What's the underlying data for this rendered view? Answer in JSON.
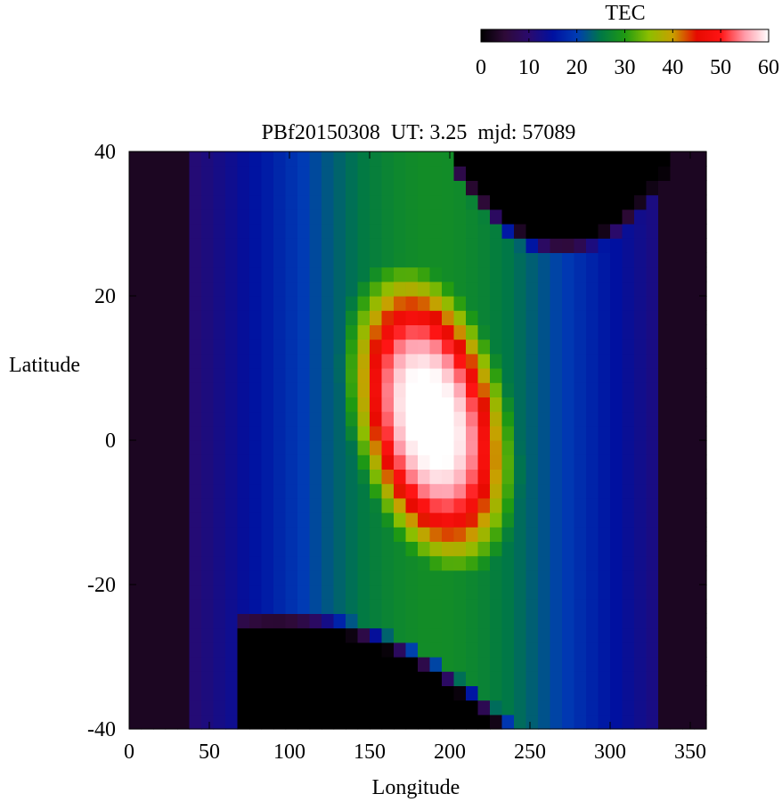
{
  "chart_data": {
    "type": "heatmap",
    "title": "PBf20150308  UT: 3.25  mjd: 57089",
    "xlabel": "Longitude",
    "ylabel": "Latitude",
    "xlim": [
      0,
      360
    ],
    "ylim": [
      -40,
      40
    ],
    "xticks": [
      0,
      50,
      100,
      150,
      200,
      250,
      300,
      350
    ],
    "yticks": [
      -40,
      -20,
      0,
      20,
      40
    ],
    "grid": false,
    "colorbar": {
      "label": "TEC",
      "range": [
        0,
        60
      ],
      "ticks": [
        0,
        10,
        20,
        30,
        40,
        50,
        60
      ],
      "placement": "top-right",
      "colormap": [
        {
          "value": 0,
          "color": "#000000"
        },
        {
          "value": 5,
          "color": "#2e0a38"
        },
        {
          "value": 10,
          "color": "#2a0a6e"
        },
        {
          "value": 15,
          "color": "#0010a0"
        },
        {
          "value": 20,
          "color": "#003cb4"
        },
        {
          "value": 25,
          "color": "#007846"
        },
        {
          "value": 30,
          "color": "#1f9a12"
        },
        {
          "value": 35,
          "color": "#8cbe00"
        },
        {
          "value": 40,
          "color": "#c8a000"
        },
        {
          "value": 45,
          "color": "#e60a00"
        },
        {
          "value": 50,
          "color": "#ff1414"
        },
        {
          "value": 55,
          "color": "#ff9aa8"
        },
        {
          "value": 60,
          "color": "#ffffff"
        }
      ]
    },
    "grid_resolution": {
      "lon_step": 7.5,
      "lat_step": 2.0
    },
    "field_model": {
      "core_peak_tec": 62,
      "core_center": {
        "lon": 188,
        "lat": 3
      },
      "core_tilt_deg_per_lat": 1.6,
      "core_radius": {
        "lon": 48,
        "lat": 21
      },
      "dark_region_top": {
        "lon_start": 200,
        "lon_end": 340,
        "lat_floor_min": 25
      },
      "dark_region_bottom": {
        "lon_start": 70,
        "lon_end": 250,
        "lat_ceiling_max": -23
      }
    }
  }
}
